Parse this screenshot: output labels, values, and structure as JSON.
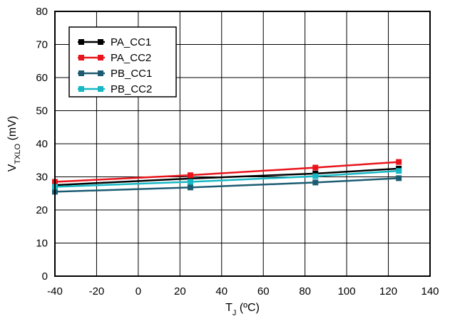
{
  "chart_data": {
    "type": "line",
    "x_tick_labels": [
      "-40",
      "-20",
      "0",
      "20",
      "40",
      "60",
      "80",
      "100",
      "120",
      "140"
    ],
    "y_tick_labels": [
      "0",
      "10",
      "20",
      "30",
      "40",
      "50",
      "60",
      "70",
      "80"
    ],
    "xlim": [
      -40,
      140
    ],
    "ylim": [
      0,
      80
    ],
    "grid": true,
    "legend_position": "top-left",
    "ylabel": {
      "main": "V",
      "sub": "TXLO",
      "suffix": " (mV)"
    },
    "xlabel": {
      "main": "T",
      "sub": "J",
      "suffix": " (ºC)"
    },
    "series": [
      {
        "name": "PA_CC1",
        "color": "#000000",
        "marker": "square",
        "x": [
          -40,
          25,
          85,
          125
        ],
        "y": [
          27.5,
          29.5,
          31.0,
          32.5
        ]
      },
      {
        "name": "PA_CC2",
        "color": "#e8141b",
        "marker": "square",
        "x": [
          -40,
          25,
          85,
          125
        ],
        "y": [
          28.5,
          30.5,
          32.8,
          34.5
        ]
      },
      {
        "name": "PB_CC1",
        "color": "#1c5c72",
        "marker": "square",
        "x": [
          -40,
          25,
          85,
          125
        ],
        "y": [
          25.5,
          26.8,
          28.3,
          29.6
        ]
      },
      {
        "name": "PB_CC2",
        "color": "#17b8c4",
        "marker": "square",
        "x": [
          -40,
          25,
          85,
          125
        ],
        "y": [
          27.0,
          28.5,
          30.2,
          31.8
        ]
      }
    ]
  }
}
